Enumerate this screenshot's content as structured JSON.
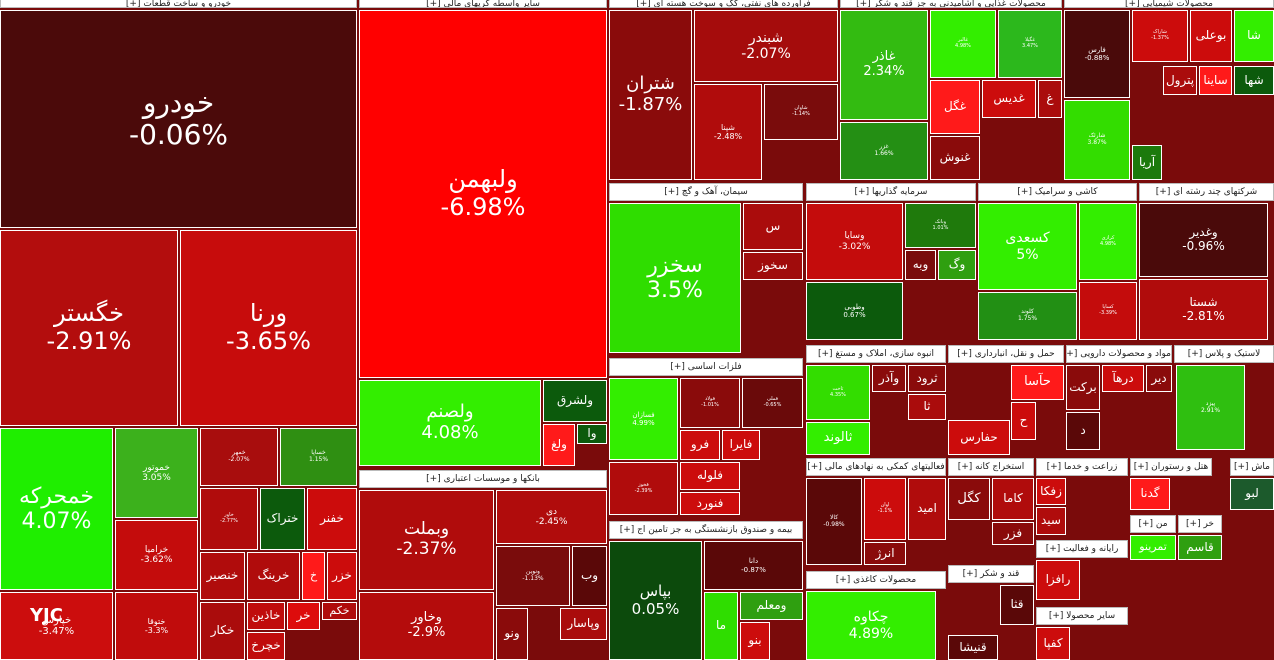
{
  "logo": "YJC",
  "sectors": [
    {
      "title": "خودرو و ساخت قطعات [+]",
      "tiles": [
        {
          "name": "خودرو",
          "change": "-0.06%"
        },
        {
          "name": "خگستر",
          "change": "-2.91%"
        },
        {
          "name": "ورنا",
          "change": "-3.65%"
        },
        {
          "name": "خمحرکه",
          "change": "4.07%"
        },
        {
          "name": "خموتور",
          "change": "3.05%"
        },
        {
          "name": "خرامیا",
          "change": "-3.62%"
        },
        {
          "name": "خپارس",
          "change": "-3.47%"
        },
        {
          "name": "ختوقا",
          "change": "-3.3%"
        },
        {
          "name": "خمهر",
          "change": "-2.07%"
        },
        {
          "name": "خساپا",
          "change": "1.15%"
        },
        {
          "name": "خاور",
          "change": "-2.77%"
        },
        {
          "name": "ختراک"
        },
        {
          "name": "خفنر"
        },
        {
          "name": "خنصیر"
        },
        {
          "name": "خرینگ"
        },
        {
          "name": "خ"
        },
        {
          "name": "خزر"
        },
        {
          "name": "خکار"
        },
        {
          "name": "خاذین"
        },
        {
          "name": "خچرخ"
        },
        {
          "name": "خر"
        },
        {
          "name": "خکم"
        }
      ]
    },
    {
      "title": "سایر واسطه گریهای مالی [+]",
      "tiles": [
        {
          "name": "ولبهمن",
          "change": "-6.98%"
        },
        {
          "name": "ولصنم",
          "change": "4.08%"
        },
        {
          "name": "ولشرق"
        },
        {
          "name": "ولغ"
        },
        {
          "name": "وا"
        }
      ]
    },
    {
      "title": "بانکها و موسسات اعتباری [+]",
      "tiles": [
        {
          "name": "وبملت",
          "change": "-2.37%"
        },
        {
          "name": "وخاور",
          "change": "-2.9%"
        },
        {
          "name": "دی",
          "change": "-2.45%"
        },
        {
          "name": "ونوین",
          "change": "-1.13%"
        },
        {
          "name": "وب"
        },
        {
          "name": "ونو"
        },
        {
          "name": "وپاسار"
        }
      ]
    },
    {
      "title": "فرآورده های نفتی، کک و سوخت هسته ای [+]",
      "tiles": [
        {
          "name": "شتران",
          "change": "-1.87%"
        },
        {
          "name": "شبندر",
          "change": "-2.07%"
        },
        {
          "name": "شپنا",
          "change": "-2.48%"
        },
        {
          "name": "شاوان",
          "change": "-1.14%"
        }
      ]
    },
    {
      "title": "سیمان، آهک و گچ [+]",
      "tiles": [
        {
          "name": "سخزر",
          "change": "3.5%"
        },
        {
          "name": "س"
        },
        {
          "name": "سخوز"
        }
      ]
    },
    {
      "title": "فلزات اساسی [+]",
      "tiles": [
        {
          "name": "فسازان",
          "change": "4.99%"
        },
        {
          "name": "فولاد",
          "change": "-1.01%"
        },
        {
          "name": "فملی",
          "change": "-0.65%"
        },
        {
          "name": "فرو"
        },
        {
          "name": "فایرا"
        },
        {
          "name": "فلوله"
        },
        {
          "name": "فنورد"
        },
        {
          "name": "فخوز",
          "change": "-2.39%"
        }
      ]
    },
    {
      "title": "بیمه و صندوق بازنشستگی به جز تامین اج [+]",
      "tiles": [
        {
          "name": "بپاس",
          "change": "0.05%"
        },
        {
          "name": "دانا",
          "change": "-0.87%"
        },
        {
          "name": "ما"
        },
        {
          "name": "ومعلم"
        },
        {
          "name": "بنو"
        }
      ]
    },
    {
      "title": "محصولات غذایی و آشامیدنی به جز قند و شکر [+]",
      "tiles": [
        {
          "name": "غاذر",
          "change": "2.34%"
        },
        {
          "name": "غالبر",
          "change": "4.98%"
        },
        {
          "name": "غگیلا",
          "change": "3.47%"
        },
        {
          "name": "غگل"
        },
        {
          "name": "غدیس"
        },
        {
          "name": "غ"
        },
        {
          "name": "غزر",
          "change": "1.66%"
        },
        {
          "name": "غنوش"
        }
      ]
    },
    {
      "title": "محصولات شیمیایی [+]",
      "tiles": [
        {
          "name": "فارس",
          "change": "-0.88%"
        },
        {
          "name": "شاراک",
          "change": "-1.37%"
        },
        {
          "name": "بوعلی"
        },
        {
          "name": "شا"
        },
        {
          "name": "شارئک",
          "change": "3.87%"
        },
        {
          "name": "پترول"
        },
        {
          "name": "ساینا"
        },
        {
          "name": "شها"
        },
        {
          "name": "آریا"
        }
      ]
    },
    {
      "title": "سرمایه گذاریها [+]",
      "tiles": [
        {
          "name": "وسایا",
          "change": "-3.02%"
        },
        {
          "name": "وطوبی",
          "change": "0.67%"
        },
        {
          "name": "وبانک",
          "change": "1.01%"
        },
        {
          "name": "وبه"
        },
        {
          "name": "وگ"
        }
      ]
    },
    {
      "title": "کاشی و سرامیک [+]",
      "tiles": [
        {
          "name": "کسعدی",
          "change": "5%"
        },
        {
          "name": "کرازی",
          "change": "4.98%"
        },
        {
          "name": "کلوند",
          "change": "1.75%"
        },
        {
          "name": "کساپا",
          "change": "-3.39%"
        }
      ]
    },
    {
      "title": "شرکتهای چند رشته ای [+]",
      "tiles": [
        {
          "name": "وغدیر",
          "change": "-0.96%"
        },
        {
          "name": "شستا",
          "change": "-2.81%"
        }
      ]
    },
    {
      "title": "انبوه سازی، املاک و مستغ [+]",
      "tiles": [
        {
          "name": "ثاخت",
          "change": "4.35%"
        },
        {
          "name": "ثالوند"
        },
        {
          "name": "وآذر"
        },
        {
          "name": "ثرود"
        },
        {
          "name": "ثا"
        }
      ]
    },
    {
      "title": "حمل و نقل، انبارداری [+]",
      "tiles": [
        {
          "name": "حآسا"
        },
        {
          "name": "حفارس"
        },
        {
          "name": "ح"
        }
      ]
    },
    {
      "title": "مواد و محصولات دارویی [+]",
      "tiles": [
        {
          "name": "برکت"
        },
        {
          "name": "درهآ"
        },
        {
          "name": "دیر"
        },
        {
          "name": "د"
        }
      ]
    },
    {
      "title": "لاستیک و پلاس [+]",
      "tiles": [
        {
          "name": "پیزد",
          "change": "2.91%"
        }
      ]
    },
    {
      "title": "فعالیتهای کمکی به نهادهای مالی [+]",
      "tiles": [
        {
          "name": "کالا",
          "change": "-0.98%"
        },
        {
          "name": "اوان",
          "change": "-1.1%"
        },
        {
          "name": "امید"
        },
        {
          "name": "انرژ"
        }
      ]
    },
    {
      "title": "محصولات کاغذی [+]",
      "tiles": [
        {
          "name": "چکاوه",
          "change": "4.89%"
        }
      ]
    },
    {
      "title": "استخراج کانه [+]",
      "tiles": [
        {
          "name": "کگل"
        },
        {
          "name": "کاما"
        },
        {
          "name": "فزر"
        }
      ]
    },
    {
      "title": "قند و شکر [+]",
      "tiles": [
        {
          "name": "قثا"
        },
        {
          "name": "قنیشا"
        }
      ]
    },
    {
      "title": "زراعت و خدما [+]",
      "tiles": [
        {
          "name": "زفکا"
        },
        {
          "name": "سید"
        }
      ]
    },
    {
      "title": "رایانه و فعالیت [+]",
      "tiles": [
        {
          "name": "رافزا"
        }
      ]
    },
    {
      "title": "سایر محصولا [+]",
      "tiles": [
        {
          "name": "کفپا"
        }
      ]
    },
    {
      "title": "هتل و رستوران [+]",
      "tiles": [
        {
          "name": "گدنا"
        }
      ]
    },
    {
      "title": "ماش [+]",
      "tiles": [
        {
          "name": "لبو"
        }
      ]
    },
    {
      "title": "من [+]",
      "tiles": [
        {
          "name": "تمرینو"
        }
      ]
    },
    {
      "title": "خر [+]",
      "tiles": [
        {
          "name": "قاسم"
        }
      ]
    }
  ]
}
